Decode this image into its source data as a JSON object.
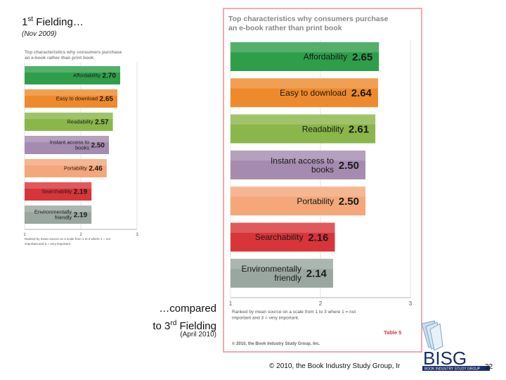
{
  "slide": {
    "heading1_prefix": "1",
    "heading1_sup": "st",
    "heading1_suffix": " Fielding…",
    "date1": "(Nov 2009)",
    "heading2_line1": "…compared",
    "heading2_prefix": "to 3",
    "heading2_sup": "rd",
    "heading2_suffix": " Fielding",
    "date2": "(April 2010)",
    "footer_copyright": "© 2010, the Book Industry Study Group, Ir",
    "page_number": "32"
  },
  "logo": {
    "wordmark": "BISG",
    "tagline": "BOOK INDUSTRY STUDY GROUP"
  },
  "colors": {
    "affordability": "#2e9e4a",
    "easy": "#ee8a2c",
    "readability": "#8bb64a",
    "instant": "#a58bb0",
    "portability": "#f4a77a",
    "searchability": "#d8353a",
    "environmental": "#9aa7a0",
    "frame": "#f1aab5",
    "title": "#888888"
  },
  "chart_data": [
    {
      "type": "bar",
      "title": "Top characteristics why consumers purchase an e-book rather than print book",
      "categories": [
        "Affordability",
        "Easy to download",
        "Readability",
        "Instant access to books",
        "Portability",
        "Searchability",
        "Environmentally friendly"
      ],
      "values": [
        2.7,
        2.65,
        2.57,
        2.5,
        2.46,
        2.19,
        2.19
      ],
      "value_labels": [
        "2.70",
        "2.65",
        "2.57",
        "2.50",
        "2.46",
        "2.19",
        "2.19"
      ],
      "xlim": [
        1,
        3
      ],
      "xticks": [
        "1",
        "2",
        "3"
      ],
      "footnote": "Ranked by mean source on a scale from 1 to 3 where 1 = not important and 3 = very important.",
      "grid": true
    },
    {
      "type": "bar",
      "title": "Top characteristics why consumers purchase an e-book rather than print book",
      "categories": [
        "Affordability",
        "Easy to download",
        "Readability",
        "Instant access to books",
        "Portability",
        "Searchability",
        "Environmentally friendly"
      ],
      "values": [
        2.65,
        2.64,
        2.61,
        2.5,
        2.5,
        2.16,
        2.14
      ],
      "value_labels": [
        "2.65",
        "2.64",
        "2.61",
        "2.50",
        "2.50",
        "2.16",
        "2.14"
      ],
      "xlim": [
        1,
        3
      ],
      "xticks": [
        "1",
        "2",
        "3"
      ],
      "footnote": "Ranked by mean source on a scale from 1 to 3 where 1 = not important and 3 = very important.",
      "table_label": "Table 5",
      "copyright": "© 2010, the Book Industry Study Group, Inc.",
      "grid": true
    }
  ]
}
